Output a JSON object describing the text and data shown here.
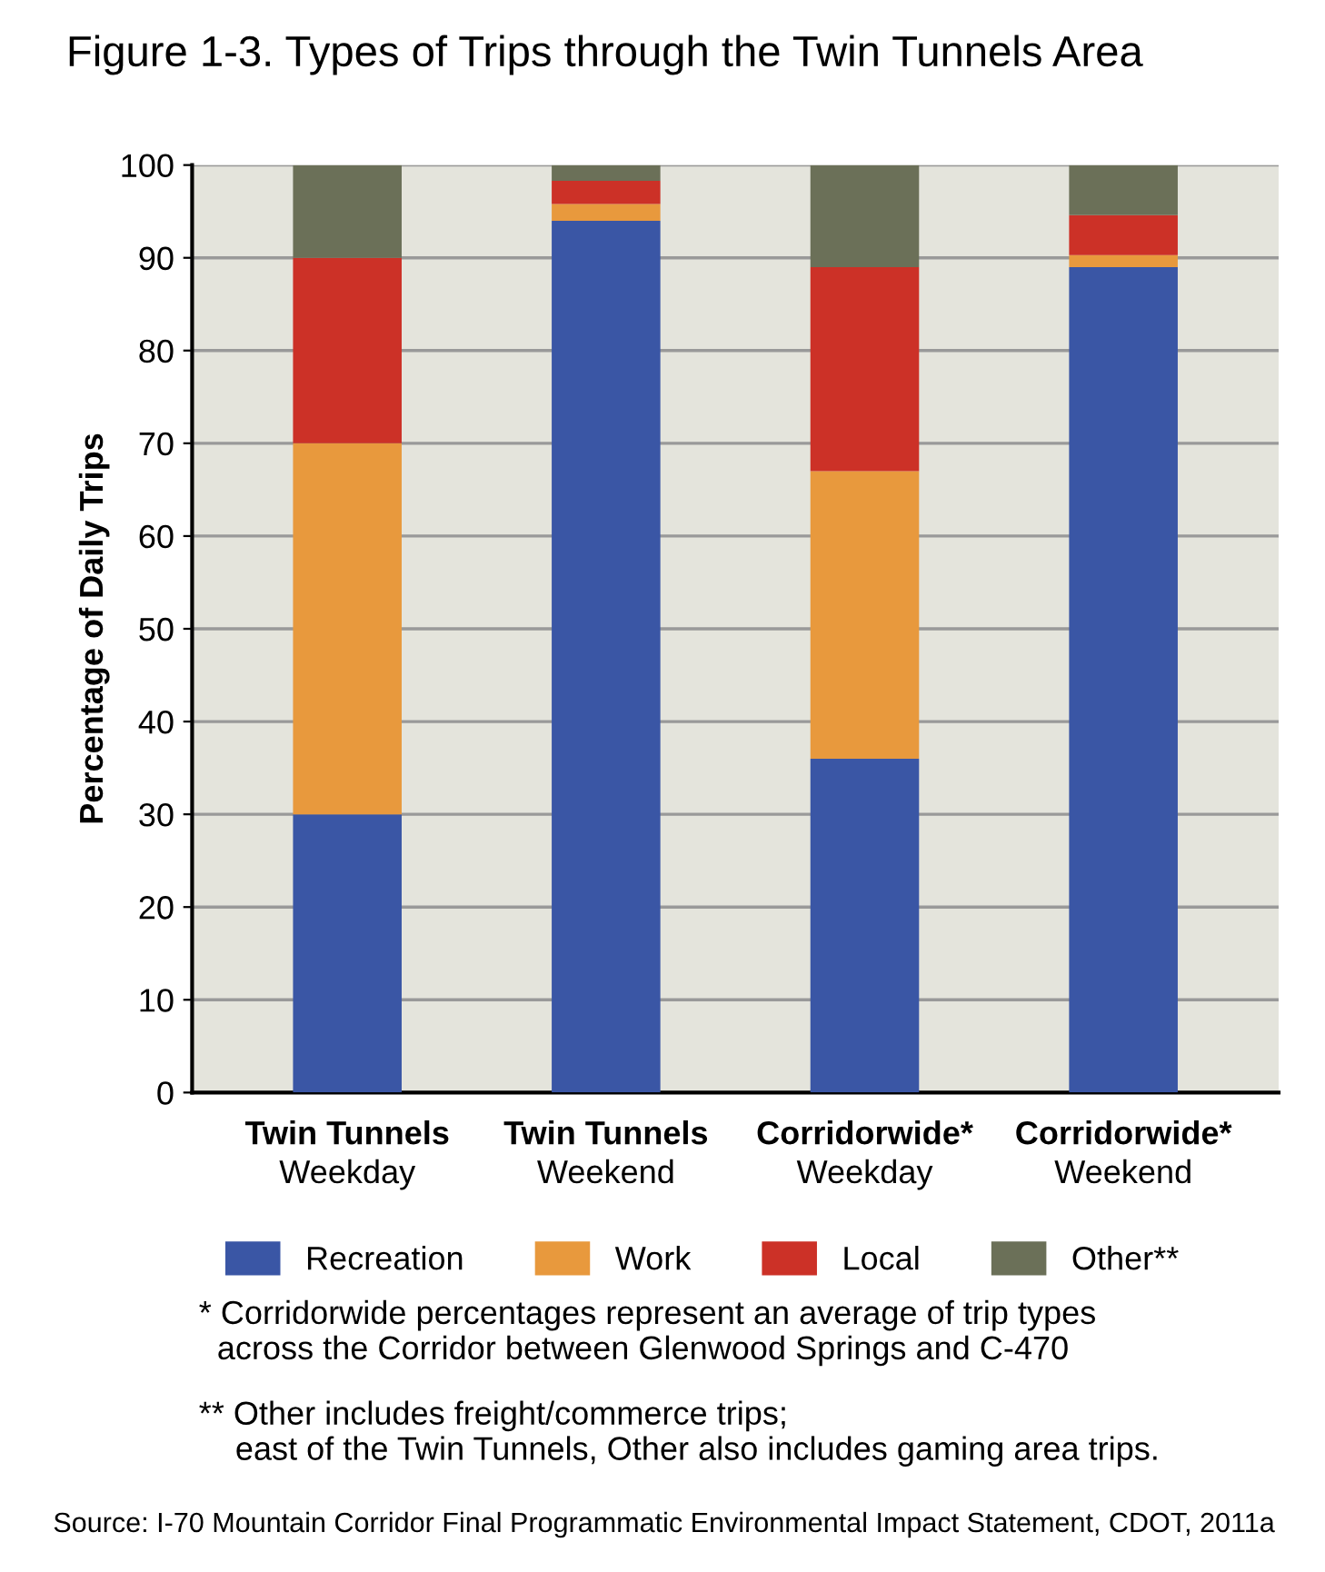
{
  "chart_data": {
    "type": "bar",
    "stacked": true,
    "title": "Figure 1-3. Types of Trips through the Twin Tunnels Area",
    "ylabel": "Percentage of Daily Trips",
    "categories": [
      "Twin Tunnels\nWeekday",
      "Twin Tunnels\nWeekend",
      "Corridorwide*\nWeekday",
      "Corridorwide*\nWeekend"
    ],
    "series": [
      {
        "name": "Recreation",
        "color": "#3a56a5",
        "values": [
          30,
          94,
          36,
          89
        ]
      },
      {
        "name": "Work",
        "color": "#e8993d",
        "values": [
          40,
          1.8,
          31,
          1.3
        ]
      },
      {
        "name": "Local",
        "color": "#cc3127",
        "values": [
          20,
          2.5,
          22,
          4.3
        ]
      },
      {
        "name": "Other**",
        "color": "#6b7058",
        "values": [
          10,
          1.7,
          11,
          5.4
        ]
      }
    ],
    "ylim": [
      0,
      100
    ],
    "yticks": [
      0,
      10,
      20,
      30,
      40,
      50,
      60,
      70,
      80,
      90,
      100
    ],
    "grid": "y",
    "legend": "bottom",
    "annotations": [
      "* Corridorwide percentages represent an average of trip types\n  across the Corridor between Glenwood Springs and C-470",
      "** Other includes freight/commerce trips;\n    east of the Twin Tunnels, Other also includes gaming area trips.",
      "Source: I-70 Mountain Corridor Final Programmatic Environmental Impact Statement, CDOT, 2011a"
    ]
  }
}
